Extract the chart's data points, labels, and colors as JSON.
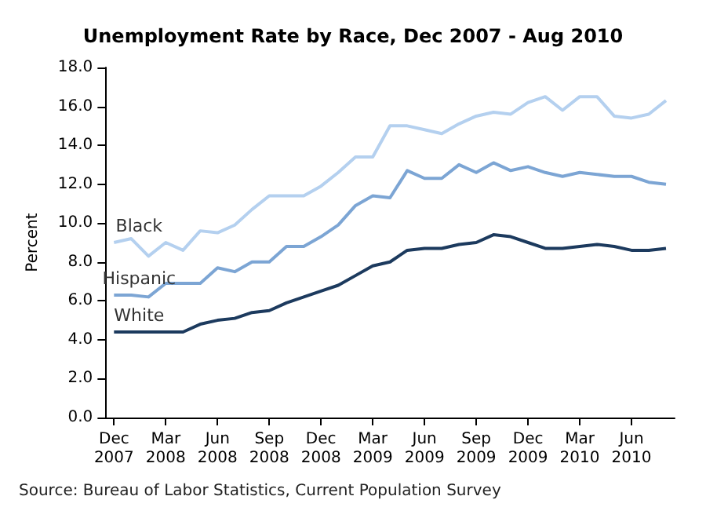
{
  "chart_data": {
    "type": "line",
    "title": "Unemployment Rate by Race, Dec 2007 - Aug 2010",
    "ylabel": "Percent",
    "categories": [
      "Dec\n2007",
      null,
      null,
      "Mar\n2008",
      null,
      null,
      "Jun\n2008",
      null,
      null,
      "Sep\n2008",
      null,
      null,
      "Dec\n2008",
      null,
      null,
      "Mar\n2009",
      null,
      null,
      "Jun\n2009",
      null,
      null,
      "Sep\n2009",
      null,
      null,
      "Dec\n2009",
      null,
      null,
      "Mar\n2010",
      null,
      null,
      "Jun\n2010",
      null,
      null
    ],
    "series": [
      {
        "name": "Black",
        "color": "#b4d0ef",
        "values": [
          9.0,
          9.2,
          8.3,
          9.0,
          8.6,
          9.6,
          9.5,
          9.9,
          10.7,
          11.4,
          11.4,
          11.4,
          11.9,
          12.6,
          13.4,
          13.4,
          15.0,
          15.0,
          14.8,
          14.6,
          15.1,
          15.5,
          15.7,
          15.6,
          16.2,
          16.5,
          15.8,
          16.5,
          16.5,
          15.5,
          15.4,
          15.6,
          16.3
        ]
      },
      {
        "name": "Hispanic",
        "color": "#7ca5d4",
        "values": [
          6.3,
          6.3,
          6.2,
          6.9,
          6.9,
          6.9,
          7.7,
          7.5,
          8.0,
          8.0,
          8.8,
          8.8,
          9.3,
          9.9,
          10.9,
          11.4,
          11.3,
          12.7,
          12.3,
          12.3,
          13.0,
          12.6,
          13.1,
          12.7,
          12.9,
          12.6,
          12.4,
          12.6,
          12.5,
          12.4,
          12.4,
          12.1,
          12.0
        ]
      },
      {
        "name": "White",
        "color": "#1c3a5e",
        "values": [
          4.4,
          4.4,
          4.4,
          4.4,
          4.4,
          4.8,
          5.0,
          5.1,
          5.4,
          5.5,
          5.9,
          6.2,
          6.5,
          6.8,
          7.3,
          7.8,
          8.0,
          8.6,
          8.7,
          8.7,
          8.9,
          9.0,
          9.4,
          9.3,
          9.0,
          8.7,
          8.7,
          8.8,
          8.9,
          8.8,
          8.6,
          8.6,
          8.7
        ]
      }
    ],
    "ylim": [
      0,
      18
    ],
    "yticks": [
      {
        "value": 0,
        "label": "0.0"
      },
      {
        "value": 2,
        "label": "2.0"
      },
      {
        "value": 4,
        "label": "4.0"
      },
      {
        "value": 6,
        "label": "6.0"
      },
      {
        "value": 8,
        "label": "8.0"
      },
      {
        "value": 10,
        "label": "10.0"
      },
      {
        "value": 12,
        "label": "12.0"
      },
      {
        "value": 14,
        "label": "14.0"
      },
      {
        "value": 16,
        "label": "16.0"
      },
      {
        "value": 18,
        "label": "18.0"
      }
    ],
    "grid": false,
    "legend": false,
    "marker": "none",
    "line_style": "solid",
    "annotations": [
      "Source: Bureau of Labor Statistics, Current Population Survey"
    ]
  }
}
